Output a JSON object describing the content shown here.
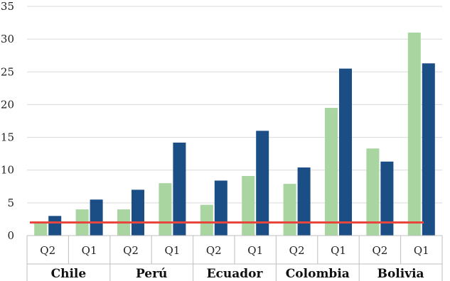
{
  "chart_data": {
    "type": "bar",
    "groups": [
      {
        "label": "Chile",
        "subcategories": [
          "Q2",
          "Q1"
        ],
        "values": [
          2.0,
          4.0
        ],
        "values2": [
          3.0,
          5.5
        ]
      },
      {
        "label": "Perú",
        "subcategories": [
          "Q2",
          "Q1"
        ],
        "values": [
          4.0,
          8.0
        ],
        "values2": [
          7.0,
          14.2
        ]
      },
      {
        "label": "Ecuador",
        "subcategories": [
          "Q2",
          "Q1"
        ],
        "values": [
          4.7,
          9.1
        ],
        "values2": [
          8.4,
          16.0
        ]
      },
      {
        "label": "Colombia",
        "subcategories": [
          "Q2",
          "Q1"
        ],
        "values": [
          7.9,
          19.5
        ],
        "values2": [
          10.4,
          25.5
        ]
      },
      {
        "label": "Bolivia",
        "subcategories": [
          "Q2",
          "Q1"
        ],
        "values": [
          13.3,
          31.0
        ],
        "values2": [
          11.3,
          26.3
        ]
      }
    ],
    "series": [
      {
        "color": "#a8d5a0"
      },
      {
        "color": "#1a4e85"
      }
    ],
    "reference_line": {
      "value": 2,
      "color": "#e8453c"
    },
    "ylim": [
      0,
      35
    ],
    "y_ticks": [
      "0",
      "5",
      "10",
      "15",
      "20",
      "25",
      "30",
      "35"
    ],
    "grid": true,
    "grid_color": "#d9d9d9"
  }
}
